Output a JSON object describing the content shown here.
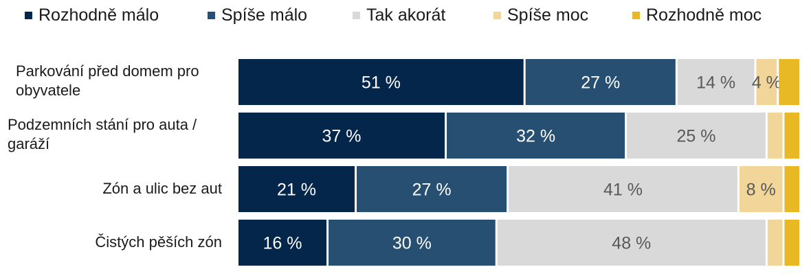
{
  "chart_data": {
    "type": "bar",
    "orientation": "horizontal",
    "stacked": true,
    "percent_stacked": true,
    "legend_position": "top",
    "grid": false,
    "series": [
      {
        "name": "Rozhodně málo",
        "color": "#03264a"
      },
      {
        "name": "Spíše málo",
        "color": "#264f72"
      },
      {
        "name": "Tak akorát",
        "color": "#d9d9d9"
      },
      {
        "name": "Spíše moc",
        "color": "#f2d699"
      },
      {
        "name": "Rozhodně moc",
        "color": "#e8b825"
      }
    ],
    "rows": [
      {
        "label": "Parkování před domem pro obyvatele",
        "values": [
          51,
          27,
          14,
          4,
          4
        ]
      },
      {
        "label": "Podzemních stání pro auta / garáží",
        "values": [
          37,
          32,
          25,
          3,
          3
        ]
      },
      {
        "label": "Zón a ulic bez aut",
        "values": [
          21,
          27,
          41,
          8,
          3
        ]
      },
      {
        "label": "Čistých pěších zón",
        "values": [
          16,
          30,
          48,
          3,
          3
        ]
      }
    ],
    "data_labels": [
      [
        "51 %",
        "27 %",
        "14 %",
        "4 %",
        ""
      ],
      [
        "37 %",
        "32 %",
        "25 %",
        "",
        ""
      ],
      [
        "21 %",
        "27 %",
        "41 %",
        "8 %",
        ""
      ],
      [
        "16 %",
        "30 %",
        "48 %",
        "",
        ""
      ]
    ],
    "label_colors": {
      "dark": "#ffffff",
      "light": "#595959"
    }
  }
}
